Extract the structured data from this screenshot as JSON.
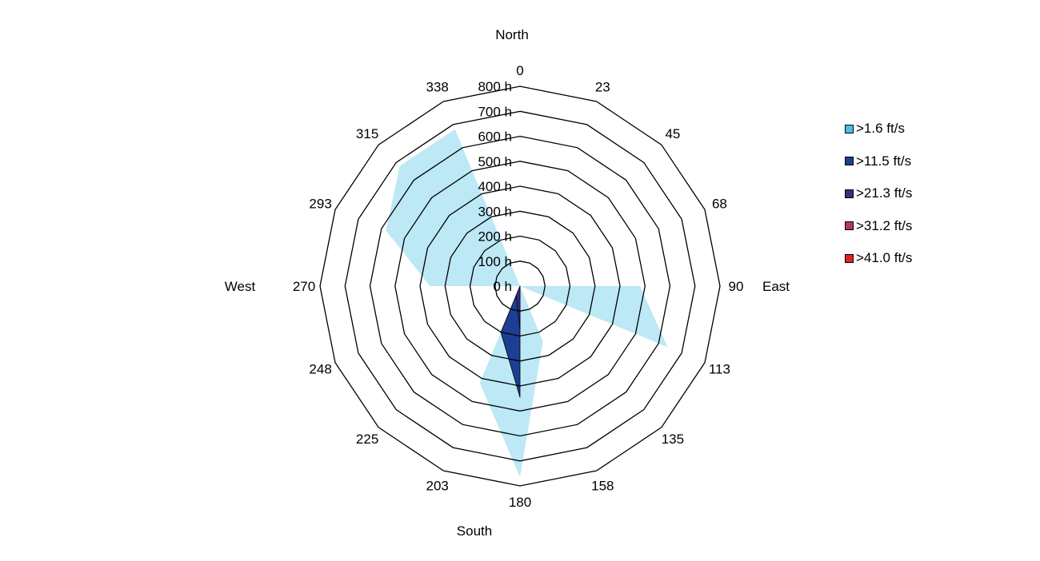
{
  "chart_data": {
    "type": "polar-area",
    "radial_unit_labels": [
      "0 h",
      "100 h",
      "200 h",
      "300 h",
      "400 h",
      "500 h",
      "600 h",
      "700 h",
      "800 h"
    ],
    "radial_ticks": [
      0,
      100,
      200,
      300,
      400,
      500,
      600,
      700,
      800
    ],
    "r_range": [
      0,
      800
    ],
    "direction_ticks": [
      0,
      23,
      45,
      68,
      90,
      113,
      135,
      158,
      180,
      203,
      225,
      248,
      270,
      293,
      315,
      338
    ],
    "direction_tick_labels": [
      "0",
      "23",
      "45",
      "68",
      "90",
      "113",
      "135",
      "158",
      "180",
      "203",
      "225",
      "248",
      "270",
      "293",
      "315",
      "338"
    ],
    "compass_labels": {
      "north": "North",
      "east": "East",
      "south": "South",
      "west": "West"
    },
    "legend_placement": "right",
    "series": [
      {
        "name": ">1.6 ft/s",
        "color": "#bde8f6",
        "swatch": "#49c0e8",
        "values": [
          0,
          0,
          0,
          0,
          480,
          640,
          0,
          240,
          765,
          420,
          0,
          0,
          360,
          580,
          680,
          680
        ]
      },
      {
        "name": ">11.5 ft/s",
        "color": "#1c3f94",
        "swatch": "#1c3f94",
        "values": [
          0,
          0,
          0,
          0,
          0,
          0,
          0,
          0,
          445,
          200,
          0,
          0,
          0,
          0,
          0,
          0
        ]
      },
      {
        "name": ">21.3 ft/s",
        "color": "#3b2c86",
        "swatch": "#3b2c86",
        "values": [
          0,
          0,
          0,
          0,
          0,
          0,
          0,
          0,
          175,
          40,
          0,
          0,
          0,
          0,
          0,
          0
        ]
      },
      {
        "name": ">31.2 ft/s",
        "color": "#b5356b",
        "swatch": "#b5356b",
        "values": [
          0,
          0,
          0,
          0,
          0,
          0,
          0,
          0,
          0,
          0,
          0,
          0,
          0,
          0,
          0,
          0
        ]
      },
      {
        "name": ">41.0 ft/s",
        "color": "#e2231a",
        "swatch": "#e2231a",
        "values": [
          0,
          0,
          0,
          0,
          0,
          0,
          0,
          0,
          0,
          0,
          0,
          0,
          0,
          0,
          0,
          0
        ]
      }
    ]
  }
}
